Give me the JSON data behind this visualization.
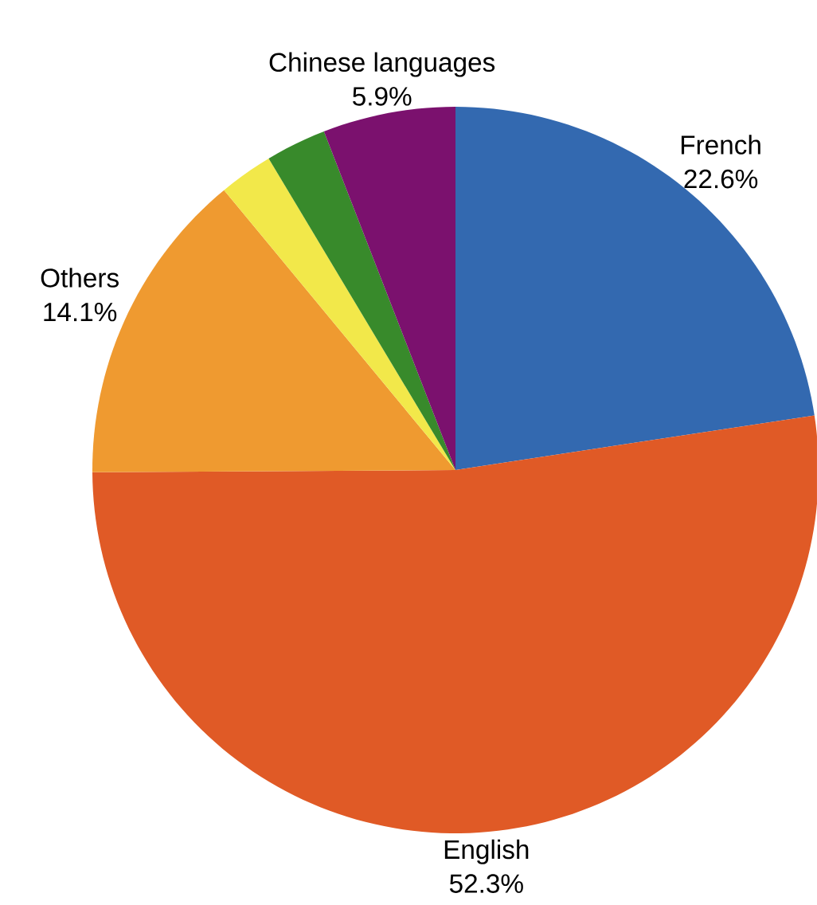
{
  "chart_data": {
    "type": "pie",
    "categories": [
      "French",
      "English",
      "Others",
      null,
      null,
      "Chinese languages"
    ],
    "values": [
      22.6,
      52.3,
      14.1,
      2.4,
      2.7,
      5.9
    ],
    "value_labels": [
      "22.6%",
      "52.3%",
      "14.1%",
      null,
      null,
      "5.9%"
    ],
    "colors": [
      "#3369b0",
      "#e05a26",
      "#ef9a30",
      "#f2e84a",
      "#388a2b",
      "#7b116e"
    ]
  }
}
